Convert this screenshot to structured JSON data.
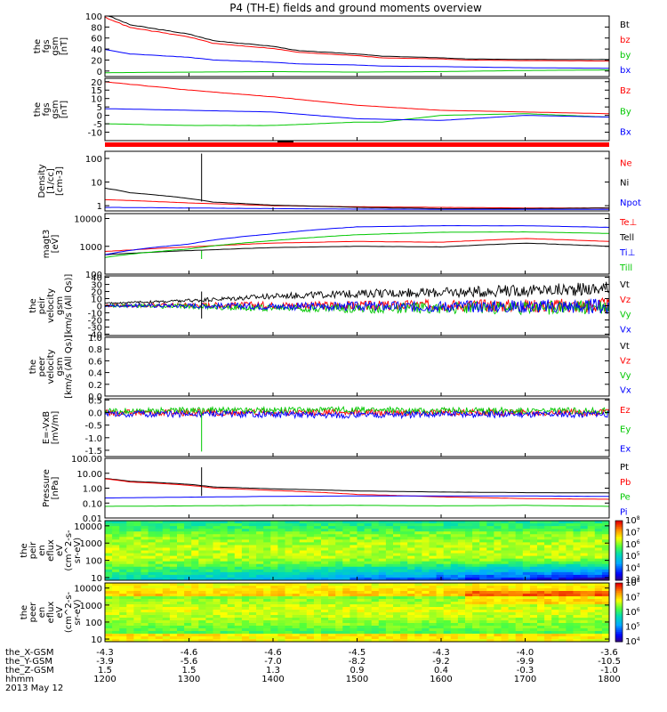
{
  "title": "P4 (TH-E) fields and ground moments overview",
  "date_label": "2013 May 12",
  "colors": {
    "black": "#000000",
    "red": "#ff0000",
    "green": "#00c800",
    "blue": "#0000ff",
    "lime": "#00ff00"
  },
  "chart_data": [
    {
      "type": "line",
      "ylabel": [
        "the",
        "fgs",
        "gsm",
        "[nT]"
      ],
      "yscale": "linear",
      "ylim": [
        -10,
        100
      ],
      "ticks": [
        0,
        20,
        40,
        60,
        80,
        100
      ],
      "legend_placement": "right",
      "series": [
        {
          "name": "Bt",
          "color": "#000000",
          "x": [
            1200,
            1230,
            1300,
            1330,
            1400,
            1430,
            1500,
            1530,
            1600,
            1630,
            1700,
            1730,
            1800
          ],
          "values": [
            103,
            84,
            67,
            55,
            45,
            37,
            31,
            27,
            24,
            22,
            21,
            21,
            21
          ]
        },
        {
          "name": "bz",
          "color": "#ff0000",
          "x": [
            1200,
            1230,
            1300,
            1330,
            1400,
            1430,
            1500,
            1530,
            1600,
            1630,
            1700,
            1730,
            1800
          ],
          "values": [
            98,
            79,
            62,
            50,
            41,
            34,
            28,
            24,
            22,
            20,
            19,
            19,
            18
          ]
        },
        {
          "name": "by",
          "color": "#00c800",
          "x": [
            1200,
            1300,
            1400,
            1500,
            1600,
            1700,
            1800
          ],
          "values": [
            -3,
            -2,
            -1,
            -2,
            -1,
            1,
            2
          ]
        },
        {
          "name": "bx",
          "color": "#0000ff",
          "x": [
            1200,
            1230,
            1300,
            1330,
            1400,
            1430,
            1500,
            1530,
            1600,
            1700,
            1800
          ],
          "values": [
            39,
            31,
            25,
            20,
            16,
            13,
            11,
            9,
            8,
            6,
            5
          ]
        }
      ]
    },
    {
      "type": "line",
      "ylabel": [
        "the",
        "fgs",
        "gsm",
        "[nT]"
      ],
      "yscale": "linear",
      "ylim": [
        -15,
        22
      ],
      "ticks": [
        -10,
        -5,
        0,
        5,
        10,
        15,
        20
      ],
      "legend_placement": "right",
      "series": [
        {
          "name": "Bz",
          "color": "#ff0000",
          "x": [
            1200,
            1300,
            1400,
            1500,
            1600,
            1700,
            1800
          ],
          "values": [
            20,
            15,
            11,
            6,
            3,
            2,
            1
          ]
        },
        {
          "name": "By",
          "color": "#00c800",
          "x": [
            1200,
            1300,
            1400,
            1500,
            1530,
            1600,
            1700,
            1800
          ],
          "values": [
            -5,
            -6,
            -6,
            -4,
            -4,
            0,
            1,
            -1
          ]
        },
        {
          "name": "Bx",
          "color": "#0000ff",
          "x": [
            1200,
            1300,
            1400,
            1500,
            1600,
            1700,
            1800
          ],
          "values": [
            4,
            3,
            2,
            -2,
            -3,
            0,
            -1
          ]
        }
      ]
    },
    {
      "type": "line",
      "ylabel": [
        "Density",
        "[1/cc]",
        "[cm-3]"
      ],
      "yscale": "log",
      "ylim": [
        0.6,
        200
      ],
      "ticks": [
        1,
        10,
        100
      ],
      "tick_labels": [
        "1",
        "10",
        "100"
      ],
      "legend_placement": "right",
      "series": [
        {
          "name": "Ne",
          "color": "#ff0000",
          "x": [
            1200,
            1300,
            1400,
            1500,
            1600,
            1700,
            1800
          ],
          "values": [
            1.8,
            1.3,
            1.0,
            0.9,
            0.85,
            0.8,
            0.8
          ]
        },
        {
          "name": "Ni",
          "color": "#000000",
          "x": [
            1200,
            1230,
            1300,
            1330,
            1400,
            1500,
            1600,
            1700,
            1800
          ],
          "values": [
            5.5,
            3.5,
            2.0,
            1.4,
            1.05,
            0.85,
            0.75,
            0.75,
            0.8
          ]
        },
        {
          "name": "Npot",
          "color": "#0000ff",
          "x": [
            1200,
            1300,
            1400,
            1500,
            1600,
            1700,
            1800
          ],
          "values": [
            0.85,
            0.8,
            0.75,
            0.72,
            0.7,
            0.7,
            0.7
          ]
        }
      ]
    },
    {
      "type": "line",
      "ylabel": [
        "magt3",
        "[eV]"
      ],
      "yscale": "log",
      "ylim": [
        100,
        15000
      ],
      "ticks": [
        100,
        1000,
        10000
      ],
      "tick_labels": [
        "100",
        "1000",
        "10000"
      ],
      "legend_placement": "right",
      "series": [
        {
          "name": "Te⊥",
          "color": "#ff0000",
          "x": [
            1200,
            1300,
            1400,
            1500,
            1600,
            1700,
            1800
          ],
          "values": [
            650,
            950,
            1300,
            1500,
            1400,
            1900,
            1500
          ]
        },
        {
          "name": "Tell",
          "color": "#000000",
          "x": [
            1200,
            1300,
            1400,
            1500,
            1600,
            1700,
            1800
          ],
          "values": [
            500,
            700,
            900,
            1000,
            950,
            1300,
            1000
          ]
        },
        {
          "name": "Ti⊥",
          "color": "#0000ff",
          "x": [
            1200,
            1300,
            1400,
            1500,
            1600,
            1700,
            1800
          ],
          "values": [
            500,
            1200,
            2800,
            5000,
            5500,
            5500,
            4800
          ]
        },
        {
          "name": "Till",
          "color": "#00c800",
          "x": [
            1200,
            1300,
            1400,
            1500,
            1600,
            1700,
            1800
          ],
          "values": [
            400,
            800,
            1600,
            2600,
            3200,
            3300,
            2900
          ]
        }
      ]
    },
    {
      "type": "line",
      "ylabel": [
        "the",
        "peir",
        "velocity",
        "gsm",
        "[km/s (All Qs)]"
      ],
      "yscale": "linear",
      "ylim": [
        -42,
        42
      ],
      "ticks": [
        -40,
        -30,
        -20,
        -10,
        0,
        10,
        20,
        30,
        40
      ],
      "legend_placement": "right",
      "series": [
        {
          "name": "Vt",
          "color": "#000000",
          "x": [
            1200,
            1300,
            1400,
            1500,
            1600,
            1700,
            1800
          ],
          "values": [
            3,
            6,
            12,
            15,
            16,
            18,
            20
          ]
        },
        {
          "name": "Vz",
          "color": "#ff0000",
          "x": [
            1200,
            1300,
            1400,
            1500,
            1600,
            1700,
            1800
          ],
          "values": [
            0,
            1,
            1,
            0,
            1,
            0,
            0
          ]
        },
        {
          "name": "Vy",
          "color": "#00c800",
          "x": [
            1200,
            1300,
            1400,
            1500,
            1600,
            1700,
            1800
          ],
          "values": [
            0,
            -1,
            -3,
            -4,
            -3,
            -3,
            -2
          ]
        },
        {
          "name": "Vx",
          "color": "#0000ff",
          "x": [
            1200,
            1300,
            1400,
            1500,
            1600,
            1700,
            1800
          ],
          "values": [
            0,
            0,
            -1,
            -1,
            -1,
            -1,
            -1
          ]
        }
      ]
    },
    {
      "type": "line",
      "ylabel": [
        "the",
        "peer",
        "velocity",
        "gsm",
        "[km/s (All Qs)]"
      ],
      "yscale": "linear",
      "ylim": [
        0,
        1
      ],
      "ticks": [
        0,
        0.2,
        0.4,
        0.6,
        0.8,
        1.0
      ],
      "tick_labels": [
        "0.0",
        "0.2",
        "0.4",
        "0.6",
        "0.8",
        "1.0"
      ],
      "legend_placement": "right",
      "series": [
        {
          "name": "Vt",
          "color": "#000000",
          "x": [],
          "values": []
        },
        {
          "name": "Vz",
          "color": "#ff0000",
          "x": [],
          "values": []
        },
        {
          "name": "Vy",
          "color": "#00c800",
          "x": [],
          "values": []
        },
        {
          "name": "Vx",
          "color": "#0000ff",
          "x": [],
          "values": []
        }
      ]
    },
    {
      "type": "line",
      "ylabel": [
        "E=-VxB",
        "[mV/m]"
      ],
      "yscale": "linear",
      "ylim": [
        -1.75,
        0.55
      ],
      "ticks": [
        -1.5,
        -1.0,
        -0.5,
        0.0,
        0.5
      ],
      "tick_labels": [
        "-1.5",
        "-1.0",
        "-0.5",
        "0.0",
        "0.5"
      ],
      "legend_placement": "right",
      "series": [
        {
          "name": "Ez",
          "color": "#ff0000",
          "x": [
            1200,
            1300,
            1400,
            1500,
            1600,
            1700,
            1800
          ],
          "values": [
            0,
            0,
            0,
            0,
            0,
            0,
            0
          ]
        },
        {
          "name": "Ey",
          "color": "#00c800",
          "x": [
            1200,
            1300,
            1400,
            1500,
            1600,
            1700,
            1800
          ],
          "values": [
            0.05,
            0.08,
            0.1,
            0.1,
            0.08,
            0.08,
            0.06
          ]
        },
        {
          "name": "Ex",
          "color": "#0000ff",
          "x": [
            1200,
            1300,
            1400,
            1500,
            1600,
            1700,
            1800
          ],
          "values": [
            -0.05,
            -0.06,
            -0.08,
            -0.1,
            -0.08,
            -0.08,
            -0.06
          ]
        }
      ]
    },
    {
      "type": "line",
      "ylabel": [
        "Pressure",
        "[nPa]"
      ],
      "yscale": "log",
      "ylim": [
        0.01,
        100
      ],
      "ticks": [
        0.01,
        0.1,
        1,
        10,
        100
      ],
      "tick_labels": [
        "0.01",
        "0.10",
        "1.00",
        "10.00",
        "100.00"
      ],
      "legend_placement": "right",
      "series": [
        {
          "name": "Pt",
          "color": "#000000",
          "x": [
            1200,
            1230,
            1300,
            1330,
            1400,
            1500,
            1600,
            1700,
            1800
          ],
          "values": [
            4.5,
            2.9,
            1.8,
            1.2,
            0.9,
            0.65,
            0.55,
            0.5,
            0.48
          ]
        },
        {
          "name": "Pb",
          "color": "#ff0000",
          "x": [
            1200,
            1230,
            1300,
            1330,
            1400,
            1500,
            1600,
            1700,
            1800
          ],
          "values": [
            4.2,
            2.6,
            1.55,
            1.0,
            0.7,
            0.38,
            0.26,
            0.2,
            0.18
          ]
        },
        {
          "name": "Pe",
          "color": "#00c800",
          "x": [
            1200,
            1300,
            1400,
            1500,
            1600,
            1700,
            1800
          ],
          "values": [
            0.06,
            0.065,
            0.07,
            0.07,
            0.065,
            0.07,
            0.06
          ]
        },
        {
          "name": "Pi",
          "color": "#0000ff",
          "x": [
            1200,
            1300,
            1400,
            1500,
            1600,
            1700,
            1800
          ],
          "values": [
            0.22,
            0.25,
            0.28,
            0.3,
            0.3,
            0.3,
            0.28
          ]
        }
      ]
    },
    {
      "type": "heatmap",
      "ylabel": [
        "the",
        "peir",
        "en",
        "eflux",
        "eV",
        "(cm^2-s-",
        "sr-eV)"
      ],
      "yscale": "log",
      "ylim": [
        7,
        20000
      ],
      "ticks": [
        10,
        100,
        1000,
        10000
      ],
      "tick_labels": [
        "10",
        "100",
        "1000",
        "10000"
      ],
      "colorbar": {
        "min_exp": 3,
        "max_exp": 8
      }
    },
    {
      "type": "heatmap",
      "ylabel": [
        "the",
        "peer",
        "en",
        "eflux",
        "eV",
        "(cm^2-s-",
        "sr-eV)"
      ],
      "yscale": "log",
      "ylim": [
        7,
        20000
      ],
      "ticks": [
        10,
        100,
        1000,
        10000
      ],
      "tick_labels": [
        "10",
        "100",
        "1000",
        "10000"
      ],
      "colorbar": {
        "min_exp": 4,
        "max_exp": 8
      }
    }
  ],
  "x_axis": {
    "ticks": [
      1200,
      1300,
      1400,
      1500,
      1600,
      1700,
      1800
    ],
    "rows": [
      {
        "label": "the_X-GSM",
        "values": [
          "-4.3",
          "-4.6",
          "-4.6",
          "-4.5",
          "-4.3",
          "-4.0",
          "-3.6"
        ]
      },
      {
        "label": "the_Y-GSM",
        "values": [
          "-3.9",
          "-5.6",
          "-7.0",
          "-8.2",
          "-9.2",
          "-9.9",
          "-10.5"
        ]
      },
      {
        "label": "the_Z-GSM",
        "values": [
          "1.5",
          "1.5",
          "1.3",
          "0.9",
          "0.4",
          "-0.3",
          "-1.0"
        ]
      },
      {
        "label": "hhmm",
        "values": [
          "1200",
          "1300",
          "1400",
          "1500",
          "1600",
          "1700",
          "1800"
        ]
      }
    ]
  }
}
